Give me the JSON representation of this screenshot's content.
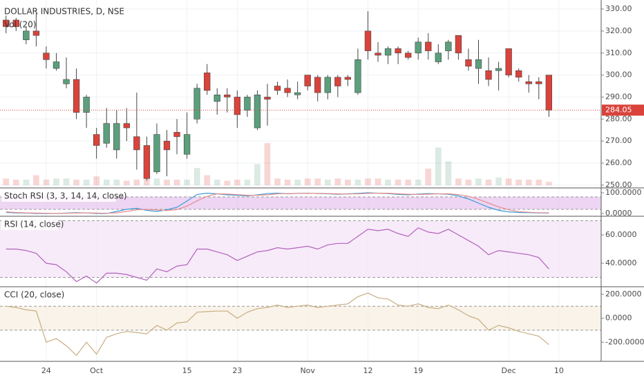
{
  "chart_data": [
    {
      "type": "candlestick",
      "title": "DOLLAR INDUSTRIES, D, NSE",
      "subtitle": "Vol (20)",
      "open": [
        325,
        325,
        316,
        320,
        310,
        303,
        296,
        298,
        283,
        273,
        269,
        266,
        278,
        272,
        268,
        256,
        270,
        274,
        264,
        280,
        301,
        288,
        291,
        290,
        284,
        276,
        290,
        295,
        294,
        291,
        300,
        299,
        292,
        299,
        299,
        292,
        320,
        310,
        309,
        312,
        310,
        310,
        315,
        306,
        311,
        318,
        307,
        303,
        302,
        302,
        312,
        302,
        297,
        297,
        300
      ],
      "high": [
        327,
        326,
        322,
        328,
        313,
        310,
        308,
        303,
        291,
        276,
        285,
        284,
        285,
        292,
        272,
        278,
        275,
        280,
        283,
        296,
        305,
        294,
        294,
        293,
        291,
        293,
        296,
        297,
        298,
        297,
        300,
        300,
        300,
        300,
        300,
        312,
        329,
        315,
        313,
        313,
        311,
        317,
        319,
        314,
        316,
        318,
        312,
        316,
        308,
        306,
        312,
        303,
        300,
        299,
        300
      ],
      "low": [
        319,
        320,
        314,
        313,
        303,
        302,
        294,
        280,
        276,
        262,
        267,
        262,
        270,
        257,
        252,
        255,
        254,
        264,
        262,
        278,
        291,
        282,
        283,
        276,
        281,
        275,
        277,
        291,
        290,
        289,
        293,
        288,
        289,
        290,
        295,
        291,
        307,
        306,
        305,
        305,
        307,
        307,
        307,
        305,
        307,
        307,
        302,
        296,
        295,
        293,
        299,
        297,
        292,
        289,
        281
      ],
      "close": [
        322,
        322,
        320,
        318,
        307,
        306,
        298,
        283,
        290,
        268,
        278,
        278,
        276,
        266,
        253,
        273,
        266,
        272,
        273,
        294,
        293,
        291,
        290,
        282,
        290,
        291,
        289,
        293,
        292,
        292,
        295,
        292,
        299,
        295,
        298,
        307,
        311,
        309,
        312,
        310,
        308,
        315,
        311,
        310,
        315,
        310,
        304,
        307,
        298,
        303,
        300,
        299,
        296,
        296,
        284.05
      ],
      "volume": [
        12,
        10,
        10,
        18,
        10,
        12,
        12,
        10,
        10,
        16,
        10,
        10,
        8,
        10,
        18,
        12,
        10,
        10,
        10,
        31,
        18,
        10,
        8,
        10,
        10,
        38,
        76,
        12,
        10,
        10,
        12,
        12,
        10,
        12,
        10,
        10,
        12,
        12,
        10,
        10,
        10,
        10,
        30,
        68,
        43,
        12,
        10,
        12,
        10,
        14,
        12,
        10,
        10,
        10,
        6
      ],
      "up_color": "#5b9f7c",
      "down_color": "#d9433b",
      "xlim": [
        -0.6,
        59.2
      ],
      "xticks": [
        {
          "value": 4,
          "label": "24"
        },
        {
          "value": 9,
          "label": "Oct"
        },
        {
          "value": 18,
          "label": "15"
        },
        {
          "value": 23,
          "label": "23"
        },
        {
          "value": 30,
          "label": "Nov"
        },
        {
          "value": 36,
          "label": "12"
        },
        {
          "value": 41,
          "label": "19"
        },
        {
          "value": 50,
          "label": "Dec"
        },
        {
          "value": 55,
          "label": "10"
        }
      ],
      "ylim": [
        248.7,
        334.1
      ],
      "yticks": [
        {
          "value": 330,
          "label": "330.00"
        },
        {
          "value": 320,
          "label": "320.00"
        },
        {
          "value": 310,
          "label": "310.00"
        },
        {
          "value": 300,
          "label": "300.00"
        },
        {
          "value": 290,
          "label": "290.00"
        },
        {
          "value": 280,
          "label": "280.00"
        },
        {
          "value": 270,
          "label": "270.00"
        },
        {
          "value": 260,
          "label": "260.00"
        },
        {
          "value": 250,
          "label": "250.00"
        }
      ],
      "last_price": 284.05,
      "grid": true
    },
    {
      "type": "line",
      "title": "Stoch RSI (3, 3, 14, 14, close)",
      "series": [
        {
          "color": "#3b9ad6",
          "values": [
            5,
            3,
            2,
            0,
            0,
            0,
            2,
            4,
            3,
            0,
            0,
            10,
            20,
            25,
            15,
            10,
            18,
            30,
            60,
            92,
            98,
            95,
            90,
            88,
            85,
            90,
            96,
            98,
            95,
            97,
            98,
            96,
            95,
            93,
            95,
            97,
            100,
            98,
            96,
            92,
            90,
            94,
            96,
            95,
            93,
            85,
            70,
            50,
            30,
            15,
            8,
            5,
            4,
            3,
            2
          ]
        },
        {
          "color": "#e88d8d",
          "values": [
            8,
            5,
            3,
            2,
            1,
            0,
            1,
            2,
            3,
            2,
            1,
            3,
            10,
            18,
            20,
            17,
            14,
            19,
            36,
            61,
            83,
            95,
            94,
            91,
            88,
            88,
            90,
            95,
            96,
            97,
            97,
            97,
            96,
            95,
            94,
            95,
            97,
            98,
            98,
            95,
            93,
            92,
            93,
            95,
            95,
            91,
            83,
            68,
            50,
            32,
            18,
            9,
            6,
            4,
            3
          ]
        }
      ],
      "ylim": [
        -10,
        120
      ],
      "yticks": [
        {
          "value": 100,
          "label": "100.0000"
        },
        {
          "value": 0,
          "label": "0.0000"
        }
      ],
      "bands": [
        80,
        20
      ],
      "band_color": "#e6c3ee"
    },
    {
      "type": "line",
      "title": "RSI (14, close)",
      "series": [
        {
          "color": "#b361bd",
          "values": [
            50,
            50,
            49,
            47,
            40,
            39,
            34,
            27,
            31,
            26,
            33,
            33,
            32,
            30,
            28,
            36,
            34,
            38,
            39,
            50,
            50,
            48,
            46,
            42,
            45,
            48,
            49,
            51,
            50,
            51,
            52,
            50,
            53,
            54,
            54,
            59,
            64,
            63,
            64,
            61,
            59,
            65,
            62,
            61,
            64,
            60,
            56,
            52,
            46,
            49,
            48,
            47,
            46,
            44,
            36
          ]
        }
      ],
      "ylim": [
        23.9,
        72.7
      ],
      "yticks": [
        {
          "value": 60,
          "label": "60.0000"
        },
        {
          "value": 40,
          "label": "40.0000"
        }
      ],
      "bands": [
        70,
        30
      ],
      "band_color": "#f3e3f6"
    },
    {
      "type": "line",
      "title": "CCI (20, close)",
      "series": [
        {
          "color": "#c9ad80",
          "values": [
            100,
            90,
            70,
            60,
            -200,
            -170,
            -230,
            -310,
            -200,
            -300,
            -160,
            -130,
            -110,
            -120,
            -130,
            -60,
            -100,
            -40,
            -30,
            50,
            55,
            60,
            60,
            0,
            50,
            80,
            90,
            110,
            90,
            100,
            110,
            90,
            100,
            110,
            120,
            180,
            210,
            170,
            160,
            110,
            100,
            120,
            90,
            80,
            110,
            70,
            20,
            -10,
            -100,
            -60,
            -80,
            -110,
            -130,
            -150,
            -220
          ]
        }
      ],
      "ylim": [
        -354,
        257
      ],
      "yticks": [
        {
          "value": 200,
          "label": "200.0000"
        },
        {
          "value": 0,
          "label": "0.0000"
        },
        {
          "value": -200,
          "label": "-200.0000"
        }
      ],
      "bands": [
        100,
        -100
      ],
      "band_color": "#f6eedf"
    }
  ]
}
